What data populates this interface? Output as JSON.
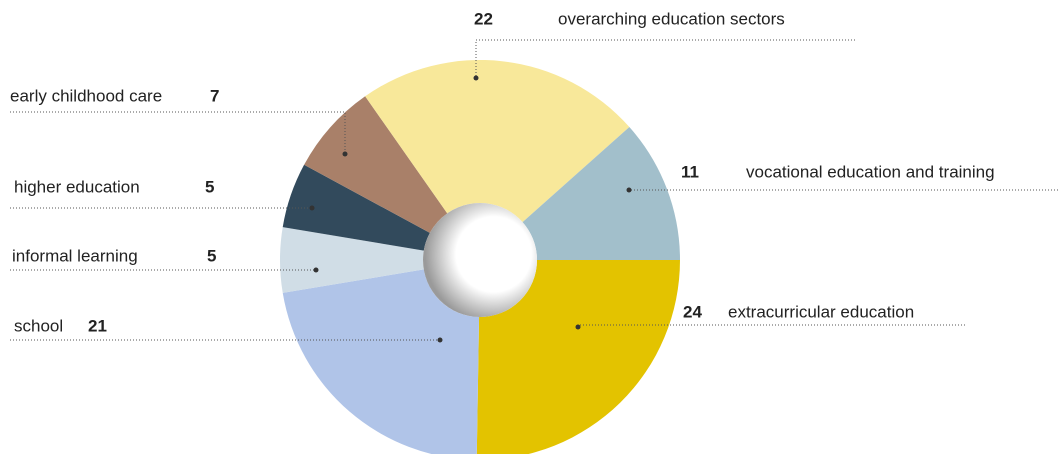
{
  "chart_data": {
    "type": "donut",
    "categories": [
      "extracurricular education",
      "school",
      "informal learning",
      "higher education",
      "early childhood care",
      "overarching education sectors",
      "vocational education and training"
    ],
    "values": [
      24,
      21,
      5,
      5,
      7,
      22,
      11
    ],
    "colors": [
      "#e3c300",
      "#b0c4e8",
      "#d0dde6",
      "#324a5c",
      "#a98069",
      "#f8e89a",
      "#a2bfcb"
    ]
  }
}
